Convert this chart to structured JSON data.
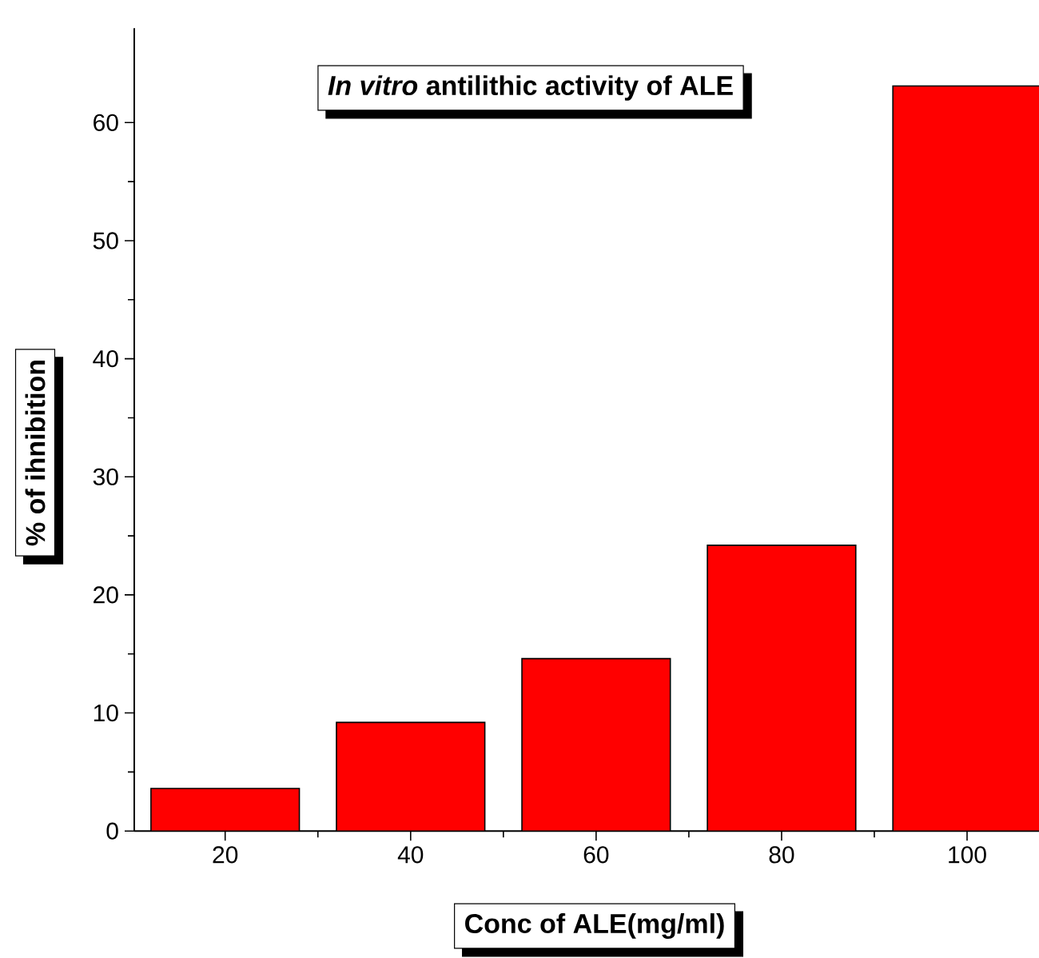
{
  "chart_data": {
    "type": "bar",
    "title": "*In vitro* antilithic activity of ALE",
    "xlabel": "Conc of ALE(mg/ml)",
    "ylabel": "% of ihnibition",
    "categories": [
      "20",
      "40",
      "60",
      "80",
      "100"
    ],
    "values": [
      3.6,
      9.2,
      14.6,
      24.2,
      63.1
    ],
    "color": "#ff0000",
    "ylim": [
      0,
      68
    ],
    "yticks": [
      0,
      10,
      20,
      30,
      40,
      50,
      60
    ],
    "grid": false
  }
}
